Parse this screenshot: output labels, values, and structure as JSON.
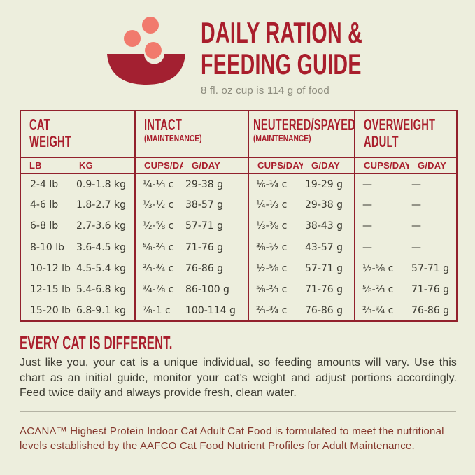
{
  "theme": {
    "bg": "#edeedd",
    "accent": "#a91e2c",
    "border": "#92212c",
    "bowl": "#a32031",
    "kibble": "#f17a6d",
    "ink": "#3c3b32",
    "maroon": "#84382d",
    "gray": "#8d8c7e",
    "divider": "#b4b3a4"
  },
  "header": {
    "icon": "bowl-with-kibble-icon",
    "title_line1": "DAILY RATION &",
    "title_line2": "FEEDING GUIDE",
    "subtitle": "8 fl. oz cup is 114 g of food"
  },
  "table": {
    "groups": [
      {
        "title": "CAT\nWEIGHT",
        "subtitle": ""
      },
      {
        "title": "INTACT",
        "subtitle": "(MAINTENANCE)"
      },
      {
        "title": "NEUTERED/SPAYED",
        "subtitle": "(MAINTENANCE)"
      },
      {
        "title": "OVERWEIGHT\nADULT",
        "subtitle": ""
      }
    ],
    "subheaders": {
      "lb": "LB",
      "kg": "KG",
      "cups": "CUPS/DAY",
      "g": "G/DAY"
    },
    "rows": [
      {
        "lb": "2-4 lb",
        "kg": "0.9-1.8 kg",
        "intact_cups": "¼-⅓ c",
        "intact_g": "29-38 g",
        "neutered_cups": "⅙-¼ c",
        "neutered_g": "19-29 g",
        "overweight_cups": "—",
        "overweight_g": "—"
      },
      {
        "lb": "4-6 lb",
        "kg": "1.8-2.7 kg",
        "intact_cups": "⅓-½ c",
        "intact_g": "38-57 g",
        "neutered_cups": "¼-⅓ c",
        "neutered_g": "29-38 g",
        "overweight_cups": "—",
        "overweight_g": "—"
      },
      {
        "lb": "6-8 lb",
        "kg": "2.7-3.6 kg",
        "intact_cups": "½-⅝ c",
        "intact_g": "57-71 g",
        "neutered_cups": "⅓-⅜ c",
        "neutered_g": "38-43 g",
        "overweight_cups": "—",
        "overweight_g": "—"
      },
      {
        "lb": "8-10 lb",
        "kg": "3.6-4.5 kg",
        "intact_cups": "⅝-⅔ c",
        "intact_g": "71-76 g",
        "neutered_cups": "⅜-½ c",
        "neutered_g": "43-57 g",
        "overweight_cups": "—",
        "overweight_g": "—"
      },
      {
        "lb": "10-12 lb",
        "kg": "4.5-5.4 kg",
        "intact_cups": "⅔-¾ c",
        "intact_g": "76-86 g",
        "neutered_cups": "½-⅝ c",
        "neutered_g": "57-71 g",
        "overweight_cups": "½-⅝ c",
        "overweight_g": "57-71 g"
      },
      {
        "lb": "12-15 lb",
        "kg": "5.4-6.8 kg",
        "intact_cups": "¾-⅞ c",
        "intact_g": "86-100 g",
        "neutered_cups": "⅝-⅔ c",
        "neutered_g": "71-76 g",
        "overweight_cups": "⅝-⅔ c",
        "overweight_g": "71-76 g"
      },
      {
        "lb": "15-20 lb",
        "kg": "6.8-9.1 kg",
        "intact_cups": "⅞-1 c",
        "intact_g": "100-114 g",
        "neutered_cups": "⅔-¾ c",
        "neutered_g": "76-86 g",
        "overweight_cups": "⅔-¾ c",
        "overweight_g": "76-86 g"
      }
    ]
  },
  "footer": {
    "heading": "EVERY CAT IS DIFFERENT.",
    "body": "Just like you, your cat is a unique individual, so feeding amounts will vary. Use this chart as an initial guide, monitor your cat’s weight and adjust portions accordingly. Feed twice daily and always provide fresh, clean water.",
    "note": "ACANA™ Highest Protein Indoor Cat Adult Cat Food is formulated to meet the nutritional levels established by the AAFCO Cat Food Nutrient Profiles for Adult Maintenance."
  }
}
